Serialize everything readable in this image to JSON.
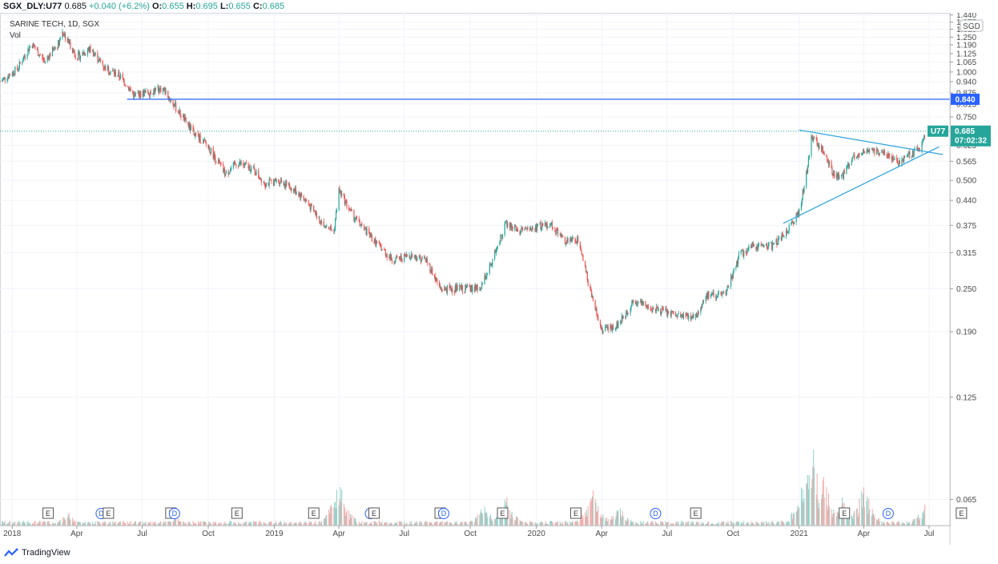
{
  "header": {
    "symbol": "SGX_DLY:U77",
    "last": "0.685",
    "change": "+0.040 (+6.2%)",
    "o_label": "O:",
    "o": "0.655",
    "h_label": "H:",
    "h": "0.695",
    "l_label": "L:",
    "l": "0.655",
    "c_label": "C:",
    "c": "0.685"
  },
  "legend": {
    "title": "SARINE TECH, 1D, SGX",
    "vol": "Vol"
  },
  "currency": "SGD",
  "brand": "TradingView",
  "price_tag": {
    "symbol": "U77",
    "value": "0.685",
    "countdown": "07:02:32"
  },
  "level_tag": "0.840",
  "colors": {
    "up": "#26a69a",
    "down": "#ef5350",
    "line": "#2962ff",
    "trend": "#29a3dc"
  },
  "chart_data": {
    "type": "candlestick",
    "y_scale": "log",
    "ylim": [
      0.055,
      1.46
    ],
    "x_range": [
      "2017-12-15",
      "2021-07-30"
    ],
    "y_ticks": [
      "1.440",
      "1.375",
      "1.315",
      "1.250",
      "1.190",
      "1.125",
      "1.065",
      "1.000",
      "0.940",
      "0.875",
      "0.815",
      "0.750",
      "0.625",
      "0.565",
      "0.500",
      "0.440",
      "0.375",
      "0.315",
      "0.250",
      "0.190",
      "0.125",
      "0.065"
    ],
    "x_ticks": [
      {
        "date": "2018-01-01",
        "label": "2018"
      },
      {
        "date": "2018-04-01",
        "label": "Apr"
      },
      {
        "date": "2018-07-01",
        "label": "Jul"
      },
      {
        "date": "2018-10-01",
        "label": "Oct"
      },
      {
        "date": "2019-01-01",
        "label": "2019"
      },
      {
        "date": "2019-04-01",
        "label": "Apr"
      },
      {
        "date": "2019-07-01",
        "label": "Jul"
      },
      {
        "date": "2019-10-01",
        "label": "Oct"
      },
      {
        "date": "2020-01-01",
        "label": "2020"
      },
      {
        "date": "2020-04-01",
        "label": "Apr"
      },
      {
        "date": "2020-07-01",
        "label": "Jul"
      },
      {
        "date": "2020-10-01",
        "label": "Oct"
      },
      {
        "date": "2021-01-01",
        "label": "2021"
      },
      {
        "date": "2021-04-01",
        "label": "Apr"
      },
      {
        "date": "2021-07-01",
        "label": "Jul"
      }
    ],
    "price_path": [
      [
        "2017-12-15",
        0.94
      ],
      [
        "2018-01-08",
        1.02
      ],
      [
        "2018-01-28",
        1.2
      ],
      [
        "2018-02-15",
        1.07
      ],
      [
        "2018-03-06",
        1.2
      ],
      [
        "2018-03-12",
        1.3
      ],
      [
        "2018-04-01",
        1.1
      ],
      [
        "2018-04-20",
        1.16
      ],
      [
        "2018-05-10",
        1.03
      ],
      [
        "2018-06-01",
        0.97
      ],
      [
        "2018-06-20",
        0.86
      ],
      [
        "2018-07-10",
        0.88
      ],
      [
        "2018-07-30",
        0.9
      ],
      [
        "2018-08-20",
        0.78
      ],
      [
        "2018-09-10",
        0.68
      ],
      [
        "2018-10-01",
        0.62
      ],
      [
        "2018-10-25",
        0.52
      ],
      [
        "2018-11-10",
        0.56
      ],
      [
        "2018-12-01",
        0.54
      ],
      [
        "2018-12-20",
        0.49
      ],
      [
        "2019-01-10",
        0.5
      ],
      [
        "2019-02-10",
        0.45
      ],
      [
        "2019-03-05",
        0.39
      ],
      [
        "2019-03-25",
        0.36
      ],
      [
        "2019-04-01",
        0.47
      ],
      [
        "2019-04-20",
        0.4
      ],
      [
        "2019-05-20",
        0.34
      ],
      [
        "2019-06-15",
        0.3
      ],
      [
        "2019-07-10",
        0.31
      ],
      [
        "2019-08-01",
        0.3
      ],
      [
        "2019-08-20",
        0.25
      ],
      [
        "2019-09-15",
        0.25
      ],
      [
        "2019-10-15",
        0.25
      ],
      [
        "2019-11-01",
        0.3
      ],
      [
        "2019-11-20",
        0.38
      ],
      [
        "2019-12-10",
        0.36
      ],
      [
        "2020-01-01",
        0.37
      ],
      [
        "2020-01-20",
        0.38
      ],
      [
        "2020-02-10",
        0.34
      ],
      [
        "2020-03-01",
        0.34
      ],
      [
        "2020-03-15",
        0.25
      ],
      [
        "2020-04-01",
        0.19
      ],
      [
        "2020-04-25",
        0.2
      ],
      [
        "2020-05-15",
        0.23
      ],
      [
        "2020-06-15",
        0.22
      ],
      [
        "2020-07-15",
        0.21
      ],
      [
        "2020-08-10",
        0.21
      ],
      [
        "2020-08-25",
        0.24
      ],
      [
        "2020-09-20",
        0.24
      ],
      [
        "2020-10-10",
        0.31
      ],
      [
        "2020-11-01",
        0.33
      ],
      [
        "2020-11-25",
        0.33
      ],
      [
        "2020-12-15",
        0.36
      ],
      [
        "2021-01-01",
        0.41
      ],
      [
        "2021-01-12",
        0.53
      ],
      [
        "2021-01-18",
        0.66
      ],
      [
        "2021-02-05",
        0.6
      ],
      [
        "2021-02-18",
        0.52
      ],
      [
        "2021-03-01",
        0.51
      ],
      [
        "2021-03-20",
        0.59
      ],
      [
        "2021-04-10",
        0.6
      ],
      [
        "2021-05-01",
        0.6
      ],
      [
        "2021-05-20",
        0.56
      ],
      [
        "2021-06-10",
        0.6
      ],
      [
        "2021-06-20",
        0.62
      ],
      [
        "2021-06-26",
        0.685
      ]
    ],
    "volume_spikes": [
      [
        "2018-03-20",
        0.15
      ],
      [
        "2018-08-15",
        0.12
      ],
      [
        "2019-04-01",
        0.55
      ],
      [
        "2019-10-20",
        0.25
      ],
      [
        "2019-11-20",
        0.33
      ],
      [
        "2020-03-20",
        0.4
      ],
      [
        "2020-04-25",
        0.25
      ],
      [
        "2021-01-12",
        0.8
      ],
      [
        "2021-01-20",
        0.95
      ],
      [
        "2021-02-05",
        0.6
      ],
      [
        "2021-03-01",
        0.42
      ],
      [
        "2021-04-01",
        0.5
      ],
      [
        "2021-06-26",
        0.3
      ]
    ],
    "horizontal_level": 0.84,
    "last_price": 0.685,
    "trendlines": [
      {
        "from": [
          "2020-12-10",
          0.38
        ],
        "to": [
          "2021-07-15",
          0.62
        ]
      },
      {
        "from": [
          "2021-01-01",
          0.69
        ],
        "to": [
          "2021-07-20",
          0.59
        ]
      }
    ],
    "events": [
      {
        "date": "2018-02-20",
        "kind": "E"
      },
      {
        "date": "2018-05-05",
        "kind": "D"
      },
      {
        "date": "2018-05-15",
        "kind": "E"
      },
      {
        "date": "2018-08-10",
        "kind": "E"
      },
      {
        "date": "2018-08-15",
        "kind": "D"
      },
      {
        "date": "2018-11-10",
        "kind": "E"
      },
      {
        "date": "2019-02-25",
        "kind": "E"
      },
      {
        "date": "2019-05-15",
        "kind": "D"
      },
      {
        "date": "2019-05-20",
        "kind": "E"
      },
      {
        "date": "2019-08-20",
        "kind": "E"
      },
      {
        "date": "2019-08-25",
        "kind": "D"
      },
      {
        "date": "2019-11-15",
        "kind": "E"
      },
      {
        "date": "2020-02-25",
        "kind": "E"
      },
      {
        "date": "2020-06-15",
        "kind": "D"
      },
      {
        "date": "2020-08-10",
        "kind": "E"
      },
      {
        "date": "2021-03-05",
        "kind": "E"
      },
      {
        "date": "2021-05-05",
        "kind": "D"
      },
      {
        "date": "2021-08-15",
        "kind": "E"
      }
    ]
  }
}
